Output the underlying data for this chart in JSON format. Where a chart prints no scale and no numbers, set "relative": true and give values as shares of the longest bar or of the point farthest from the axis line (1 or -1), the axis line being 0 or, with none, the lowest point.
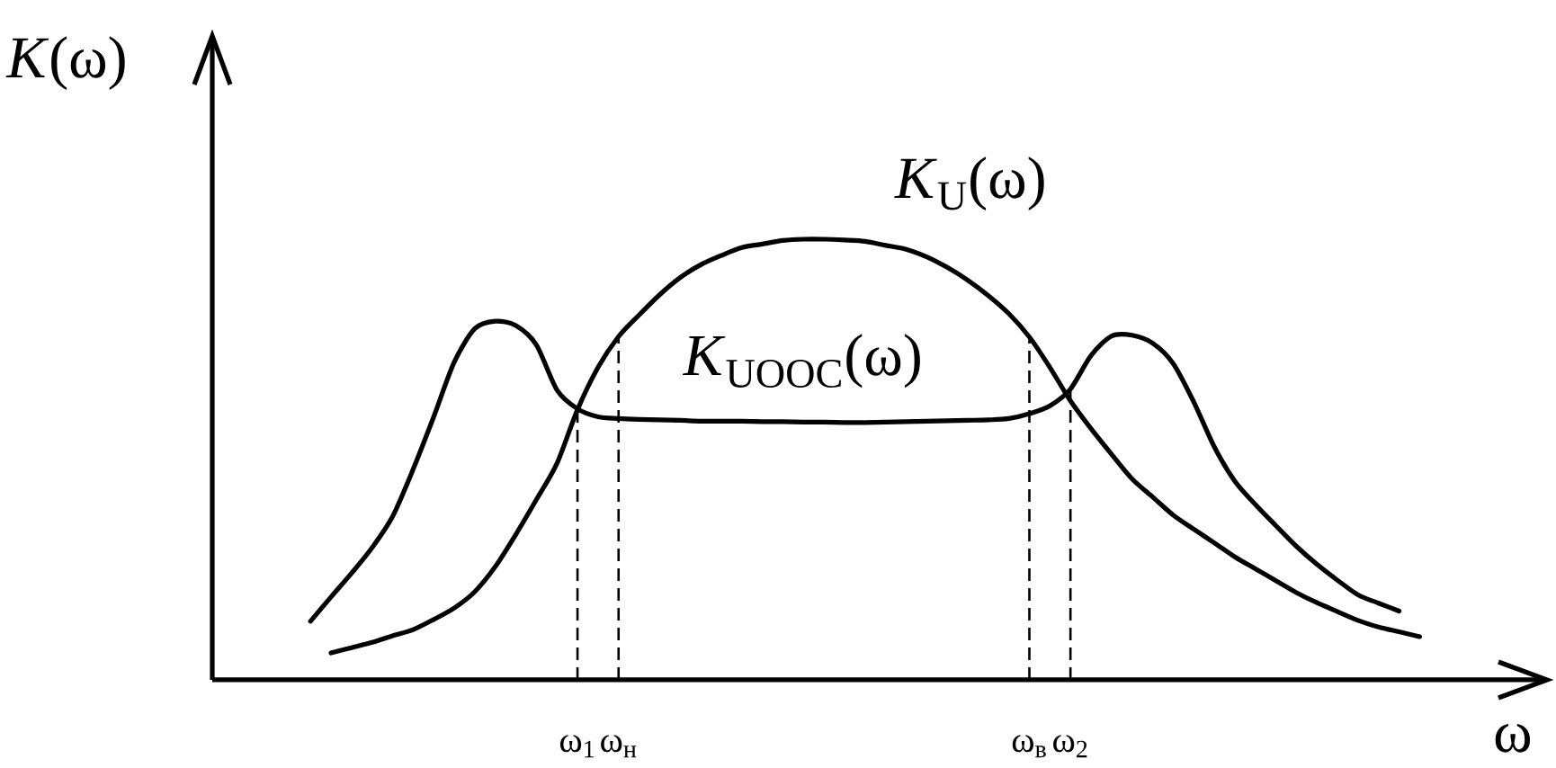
{
  "chart_data": {
    "type": "line",
    "relative": true,
    "xlabel": "ω",
    "ylabel": "*K*(ω)",
    "categories": [
      null,
      null,
      null,
      null,
      null,
      null,
      null,
      null,
      null,
      null,
      null,
      null,
      null,
      "ω$_{1}$",
      null,
      "ω$_{н}$",
      null,
      null,
      null,
      null,
      null,
      null,
      null,
      null,
      null,
      null,
      null,
      null,
      null,
      null,
      null,
      null,
      null,
      null,
      null,
      "ω$_{в}$",
      null,
      "ω$_{2}$",
      null,
      null,
      null,
      null,
      null,
      null,
      null,
      null,
      null,
      null,
      null,
      null,
      null,
      null,
      null,
      null,
      null
    ],
    "series": [
      {
        "name": "*K*$_{U}$(ω)",
        "color": "#000000",
        "values": [
          null,
          0.061,
          0.073,
          0.085,
          0.1,
          0.114,
          0.137,
          0.163,
          0.2,
          0.257,
          0.33,
          0.409,
          0.491,
          0.613,
          0.709,
          0.779,
          0.828,
          0.874,
          0.913,
          0.942,
          0.963,
          0.981,
          0.989,
          0.997,
          1.0,
          1.0,
          0.998,
          0.995,
          0.986,
          0.977,
          0.96,
          0.936,
          0.907,
          0.872,
          0.831,
          0.778,
          0.709,
          0.633,
          0.57,
          0.512,
          0.456,
          0.415,
          0.374,
          0.342,
          0.311,
          0.279,
          0.252,
          0.225,
          0.198,
          0.175,
          0.155,
          0.135,
          0.12,
          0.109,
          0.098
        ]
      },
      {
        "name": "*K*$_{UOOC}$(ω)",
        "color": "#000000",
        "values": [
          0.133,
          0.188,
          0.242,
          0.3,
          0.371,
          0.478,
          0.597,
          0.721,
          0.797,
          0.814,
          0.804,
          0.76,
          0.658,
          0.615,
          0.597,
          0.593,
          0.591,
          0.59,
          0.589,
          0.587,
          0.587,
          0.587,
          0.586,
          0.586,
          0.585,
          0.585,
          0.584,
          0.584,
          0.585,
          0.586,
          0.587,
          0.588,
          0.589,
          0.59,
          0.593,
          0.604,
          0.622,
          0.66,
          0.736,
          0.78,
          0.782,
          0.764,
          0.718,
          0.631,
          0.529,
          0.451,
          0.398,
          0.35,
          0.303,
          0.262,
          0.226,
          0.193,
          0.174,
          0.156,
          null
        ]
      }
    ],
    "ref_lines": [
      {
        "axis": "x",
        "value": "ω$_{1}$",
        "line_style": "dashed"
      },
      {
        "axis": "x",
        "value": "ω$_{н}$",
        "line_style": "dashed"
      },
      {
        "axis": "x",
        "value": "ω$_{в}$",
        "line_style": "dashed"
      },
      {
        "axis": "x",
        "value": "ω$_{2}$",
        "line_style": "dashed"
      }
    ],
    "marker": "none",
    "line_style": "solid"
  }
}
